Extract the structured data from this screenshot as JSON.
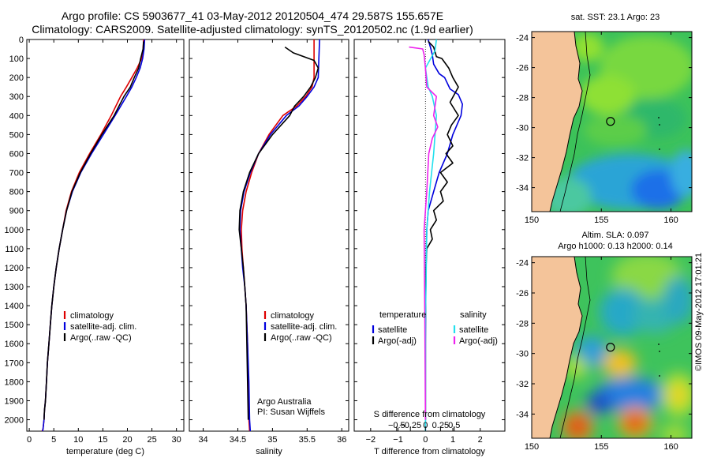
{
  "header": {
    "line1": "Argo profile: CS 5903677_41 03-May-2012 20120504_474 29.587S 155.657E",
    "line2": "Climatology: CARS2009. Satellite-adjusted climatology: synTS_20120502.nc (1.9d earlier)"
  },
  "colors": {
    "climatology": "#dd0000",
    "satellite": "#0000dd",
    "argo": "#000000",
    "salinity_sat": "#22e0ee",
    "salinity_argo": "#ee22ee",
    "land": "#f4c49a"
  },
  "chart_data": [
    {
      "type": "line",
      "name": "temperature-profile",
      "xlabel": "temperature (deg C)",
      "ylabel": "",
      "xlim": [
        -0.5,
        31.5
      ],
      "ylim": [
        2060,
        0
      ],
      "xticks": [
        0,
        5,
        10,
        15,
        20,
        25,
        30
      ],
      "yticks": [
        0,
        100,
        200,
        300,
        400,
        500,
        600,
        700,
        800,
        900,
        1000,
        1100,
        1200,
        1300,
        1400,
        1500,
        1600,
        1700,
        1800,
        1900,
        2000
      ],
      "legend": {
        "placement": "center",
        "entries": [
          "climatology",
          "satellite-adj. clim.",
          "Argo(..raw -QC)"
        ]
      },
      "series": [
        {
          "name": "climatology",
          "color_key": "climatology",
          "x": [
            23.3,
            23.2,
            22.9,
            22.0,
            20.9,
            19.8,
            18.6,
            16.7,
            14.6,
            12.3,
            10.2,
            8.6,
            7.5,
            6.8,
            6.1,
            5.5,
            5.0,
            4.6,
            4.3,
            4.0,
            3.7,
            3.5,
            3.3,
            3.1,
            3.0,
            2.8,
            2.6
          ],
          "y": [
            0,
            50,
            100,
            150,
            200,
            250,
            300,
            400,
            500,
            600,
            700,
            800,
            900,
            1000,
            1100,
            1200,
            1300,
            1400,
            1500,
            1600,
            1700,
            1800,
            1900,
            1950,
            2000,
            2050,
            2060
          ]
        },
        {
          "name": "satellite-adj. clim.",
          "color_key": "satellite",
          "x": [
            23.5,
            23.4,
            23.1,
            22.6,
            21.8,
            20.9,
            19.8,
            17.5,
            15.1,
            12.7,
            10.5,
            8.8,
            7.6,
            6.8,
            6.1,
            5.5,
            5.0,
            4.6,
            4.3,
            4.0,
            3.7,
            3.5,
            3.3,
            3.1,
            3.0,
            2.8,
            2.7
          ],
          "y": [
            0,
            50,
            100,
            150,
            200,
            250,
            300,
            400,
            500,
            600,
            700,
            800,
            900,
            1000,
            1100,
            1200,
            1300,
            1400,
            1500,
            1600,
            1700,
            1800,
            1900,
            1950,
            2000,
            2050,
            2060
          ]
        },
        {
          "name": "Argo(..raw -QC)",
          "color_key": "argo",
          "x": [
            23.3,
            23.2,
            22.7,
            22.3,
            21.4,
            20.6,
            19.3,
            17.3,
            14.8,
            12.5,
            10.4,
            8.7,
            7.6,
            6.8,
            6.1,
            5.5,
            5.0,
            4.6,
            4.3,
            4.0,
            3.7,
            3.5,
            3.3,
            3.1,
            3.0
          ],
          "y": [
            10,
            50,
            100,
            150,
            200,
            250,
            300,
            400,
            500,
            600,
            700,
            800,
            900,
            1000,
            1100,
            1200,
            1300,
            1400,
            1500,
            1600,
            1700,
            1800,
            1900,
            1950,
            2000
          ]
        }
      ]
    },
    {
      "type": "line",
      "name": "salinity-profile",
      "xlabel": "salinity",
      "xlim": [
        33.8,
        36.1
      ],
      "ylim": [
        2060,
        0
      ],
      "xticks": [
        34,
        34.5,
        35,
        35.5,
        36
      ],
      "xticklabels": [
        "34",
        "34.5",
        "35",
        "35.5",
        "36"
      ],
      "legend": {
        "placement": "center",
        "entries": [
          "climatology",
          "satellite-adj. clim.",
          "Argo(..raw -QC)"
        ]
      },
      "annotation": [
        "Argo Australia",
        "PI: Susan Wijffels"
      ],
      "series": [
        {
          "name": "climatology",
          "color_key": "climatology",
          "x": [
            35.6,
            35.6,
            35.6,
            35.57,
            35.48,
            35.35,
            35.15,
            34.95,
            34.8,
            34.7,
            34.62,
            34.57,
            34.55,
            34.56,
            34.58,
            34.6,
            34.62,
            34.63,
            34.64,
            34.65,
            34.66,
            34.67
          ],
          "y": [
            0,
            100,
            200,
            250,
            300,
            350,
            400,
            500,
            600,
            700,
            800,
            900,
            1000,
            1100,
            1200,
            1300,
            1400,
            1500,
            1600,
            1800,
            2000,
            2060
          ]
        },
        {
          "name": "satellite-adj. clim.",
          "color_key": "satellite",
          "x": [
            35.68,
            35.67,
            35.66,
            35.6,
            35.5,
            35.38,
            35.2,
            34.97,
            34.8,
            34.68,
            34.59,
            34.54,
            34.53,
            34.55,
            34.57,
            34.6,
            34.62,
            34.63,
            34.64,
            34.66,
            34.67,
            34.68
          ],
          "y": [
            0,
            100,
            200,
            250,
            300,
            350,
            400,
            500,
            600,
            700,
            800,
            900,
            1000,
            1100,
            1200,
            1300,
            1400,
            1500,
            1600,
            1800,
            2000,
            2060
          ]
        },
        {
          "name": "Argo(..raw -QC)",
          "color_key": "argo",
          "x": [
            35.18,
            35.3,
            35.6,
            35.66,
            35.62,
            35.55,
            35.45,
            35.32,
            35.25,
            35.0,
            34.8,
            34.67,
            34.58,
            34.53,
            34.52,
            34.55,
            34.58,
            34.6,
            34.62,
            34.63,
            34.64,
            34.65
          ],
          "y": [
            40,
            70,
            110,
            150,
            200,
            250,
            300,
            350,
            400,
            500,
            600,
            700,
            800,
            900,
            1000,
            1100,
            1200,
            1300,
            1400,
            1600,
            1800,
            2000
          ]
        }
      ]
    },
    {
      "type": "line",
      "name": "difference-profile",
      "xlabel": "T difference from climatology",
      "xlabel_top": "S difference from climatology",
      "xlim": [
        -2.6,
        2.9
      ],
      "ylim": [
        2060,
        0
      ],
      "xticks": [
        -2,
        -1,
        0,
        1,
        2
      ],
      "xticklabels": [
        "−2",
        "−1",
        "0",
        "1",
        "2"
      ],
      "s_xticks_t_units": [
        -1.05,
        -0.55,
        0,
        0.55,
        1.05
      ],
      "s_xticklabels": [
        "−0.5",
        "−0.25",
        "0",
        "0.25",
        "0.5"
      ],
      "legend": {
        "placement": "center",
        "temperature_header": "temperature",
        "salinity_header": "salinity",
        "entries": [
          "satellite",
          "Argo(-adj)",
          "satellite",
          "Argo(-adj)"
        ]
      },
      "series": [
        {
          "name": "temperature satellite",
          "color_key": "satellite",
          "x": [
            0.1,
            0.2,
            0.25,
            0.3,
            0.5,
            0.7,
            0.9,
            1.2,
            1.35,
            1.3,
            1.0,
            0.8,
            0.5,
            0.3,
            0.1,
            0.05,
            0.02,
            0.01,
            0.0,
            0.0,
            0.0
          ],
          "y": [
            0,
            50,
            80,
            130,
            180,
            200,
            260,
            290,
            340,
            400,
            500,
            600,
            700,
            800,
            900,
            1000,
            1200,
            1400,
            1600,
            1800,
            2060
          ]
        },
        {
          "name": "temperature Argo(-adj)",
          "color_key": "argo",
          "x": [
            0.1,
            0.3,
            0.4,
            0.6,
            0.85,
            1.0,
            1.2,
            0.9,
            1.2,
            0.95,
            0.8,
            1.0,
            0.75,
            1.0,
            0.55,
            0.8,
            0.55,
            0.65,
            0.3,
            0.4,
            0.18,
            0.25,
            0.05,
            0.02,
            0.0,
            0.0
          ],
          "y": [
            10,
            40,
            90,
            100,
            150,
            200,
            250,
            330,
            400,
            450,
            500,
            560,
            600,
            650,
            700,
            750,
            800,
            850,
            900,
            950,
            1000,
            1050,
            1100,
            1200,
            1500,
            2000
          ]
        },
        {
          "name": "salinity satellite",
          "color_key": "salinity_sat",
          "x": [
            0.4,
            0.35,
            0.0,
            0.05,
            0.1,
            0.25,
            0.4,
            0.3,
            0.15,
            0.05,
            0.0,
            0.0
          ],
          "y": [
            0,
            60,
            150,
            200,
            250,
            300,
            400,
            600,
            800,
            1000,
            1500,
            2060
          ]
        },
        {
          "name": "salinity Argo(-adj)",
          "color_key": "salinity_argo",
          "x": [
            -0.6,
            -0.1,
            -0.05,
            0.0,
            0.05,
            0.4,
            0.3,
            0.45,
            0.25,
            0.12,
            0.05,
            -0.05,
            -0.02,
            0.0
          ],
          "y": [
            40,
            50,
            80,
            150,
            250,
            300,
            400,
            460,
            520,
            600,
            800,
            1000,
            1500,
            2000
          ]
        }
      ]
    }
  ],
  "map_sst": {
    "title": "sat. SST: 23.1 Argo: 23",
    "yticklabels": [
      "-24",
      "-26",
      "-28",
      "-30",
      "-32",
      "-34"
    ],
    "xticklabels": [
      "150",
      "155",
      "160"
    ],
    "lat_range": [
      -35.6,
      -23.6
    ],
    "lon_range": [
      150,
      161.5
    ],
    "lat_ticks": [
      -24,
      -26,
      -28,
      -30,
      -32,
      -34
    ],
    "lon_ticks": [
      150,
      155,
      160
    ],
    "argo_position": {
      "lat": -29.587,
      "lon": 155.657
    }
  },
  "map_sla": {
    "title_line1": "Altim. SLA: 0.097",
    "title_line2": "Argo h1000: 0.13 h2000: 0.14",
    "yticklabels": [
      "-24",
      "-26",
      "-28",
      "-30",
      "-32",
      "-34"
    ],
    "xticklabels": [
      "150",
      "155",
      "160"
    ],
    "lat_range": [
      -35.6,
      -23.6
    ],
    "lon_range": [
      150,
      161.5
    ],
    "lat_ticks": [
      -24,
      -26,
      -28,
      -30,
      -32,
      -34
    ],
    "lon_ticks": [
      150,
      155,
      160
    ],
    "argo_position": {
      "lat": -29.587,
      "lon": 155.657
    }
  },
  "stamp": "©IMOS 09-May-2012 17:01:21"
}
